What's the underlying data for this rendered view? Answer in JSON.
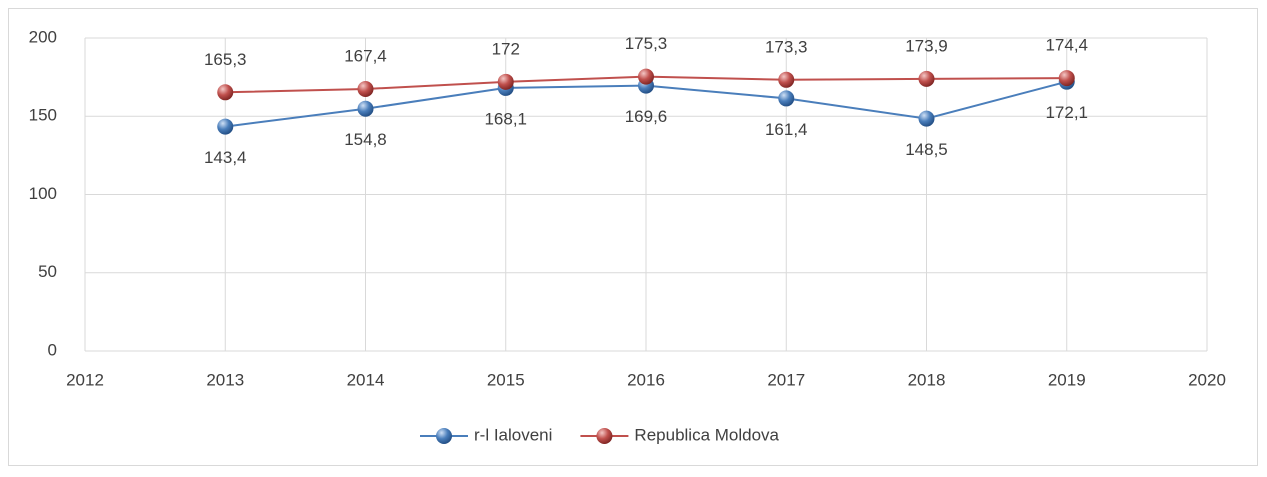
{
  "chart_data": {
    "type": "line",
    "x": [
      2013,
      2014,
      2015,
      2016,
      2017,
      2018,
      2019
    ],
    "series": [
      {
        "name": "r-l Ialoveni",
        "color": "#4a7ebb",
        "label_position": "below",
        "values": [
          143.4,
          154.8,
          168.1,
          169.6,
          161.4,
          148.5,
          172.1
        ],
        "value_labels": [
          "143,4",
          "154,8",
          "168,1",
          "169,6",
          "161,4",
          "148,5",
          "172,1"
        ]
      },
      {
        "name": "Republica Moldova",
        "color": "#c0504d",
        "label_position": "above",
        "values": [
          165.3,
          167.4,
          172,
          175.3,
          173.3,
          173.9,
          174.4
        ],
        "value_labels": [
          "165,3",
          "167,4",
          "172",
          "175,3",
          "173,3",
          "173,9",
          "174,4"
        ]
      }
    ],
    "xlim": [
      2012,
      2020
    ],
    "xticks": [
      2012,
      2013,
      2014,
      2015,
      2016,
      2017,
      2018,
      2019,
      2020
    ],
    "ylim": [
      0,
      200
    ],
    "yticks": [
      0,
      50,
      100,
      150,
      200
    ],
    "grid": true,
    "legend": "bottom"
  }
}
